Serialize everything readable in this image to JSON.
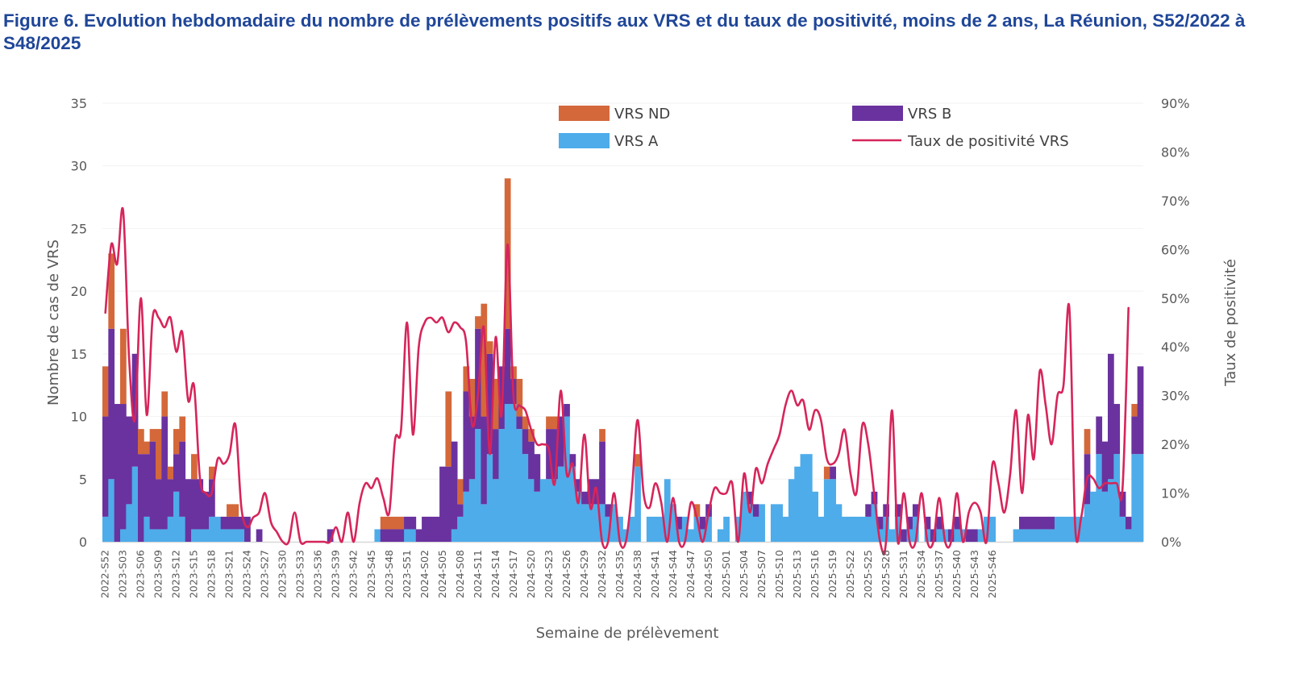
{
  "title": "Figure 6. Evolution hebdomadaire du nombre de prélèvements positifs aux VRS et du taux de positivité, moins de 2 ans, La Réunion, S52/2022 à S48/2025",
  "chart_data": {
    "type": "bar",
    "stacked": true,
    "xlabel": "Semaine de prélèvement",
    "ylabel": "Nombre de cas de VRS",
    "y2label": "Taux de positivité",
    "ylim": [
      0,
      35
    ],
    "y2lim": [
      0,
      0.9
    ],
    "yticks": [
      "0",
      "5",
      "10",
      "15",
      "20",
      "25",
      "30",
      "35"
    ],
    "y2ticks": [
      "0%",
      "10%",
      "20%",
      "30%",
      "40%",
      "50%",
      "60%",
      "70%",
      "80%",
      "90%"
    ],
    "legend_position": "top",
    "colors": {
      "VRS A": "#4eacea",
      "VRS B": "#6a329f",
      "VRS ND": "#d4683a",
      "Taux de positivité VRS": "#d6255a"
    },
    "legend": [
      {
        "name": "VRS ND",
        "kind": "bar"
      },
      {
        "name": "VRS B",
        "kind": "bar"
      },
      {
        "name": "VRS A",
        "kind": "bar"
      },
      {
        "name": "Taux de positivité VRS",
        "kind": "line"
      }
    ],
    "x_tick_labels": [
      "2022-S52",
      "2023-S03",
      "2023-S06",
      "2023-S09",
      "2023-S12",
      "2023-S15",
      "2023-S18",
      "2023-S21",
      "2023-S24",
      "2023-S27",
      "2023-S30",
      "2023-S33",
      "2023-S36",
      "2023-S39",
      "2023-S42",
      "2023-S45",
      "2023-S48",
      "2023-S51",
      "2024-S02",
      "2024-S05",
      "2024-S08",
      "2024-S11",
      "2024-S14",
      "2024-S17",
      "2024-S20",
      "2024-S23",
      "2024-S26",
      "2024-S29",
      "2024-S32",
      "2024-S35",
      "2024-S38",
      "2024-S41",
      "2024-S44",
      "2024-S47",
      "2024-S50",
      "2025-S01",
      "2025-S04",
      "2025-S07",
      "2025-S10",
      "2025-S13",
      "2025-S16",
      "2025-S19",
      "2025-S22",
      "2025-S25",
      "2025-S28",
      "2025-S31",
      "2025-S34",
      "2025-S37",
      "2025-S40",
      "2025-S43",
      "2025-S46"
    ],
    "series": [
      {
        "name": "VRS A",
        "values": [
          2,
          5,
          0,
          1,
          3,
          6,
          0,
          2,
          1,
          1,
          1,
          2,
          4,
          2,
          0,
          1,
          1,
          1,
          2,
          2,
          1,
          1,
          1,
          1,
          0,
          0,
          0,
          0,
          0,
          0,
          0,
          0,
          0,
          0,
          0,
          0,
          0,
          0,
          0,
          0,
          0,
          0,
          0,
          0,
          0,
          0,
          1,
          0,
          0,
          0,
          0,
          1,
          1,
          0,
          0,
          0,
          0,
          0,
          0,
          1,
          2,
          4,
          5,
          9,
          3,
          7,
          5,
          9,
          11,
          11,
          9,
          7,
          5,
          4,
          5,
          5,
          5,
          6,
          10,
          6,
          4,
          3,
          3,
          3,
          3,
          2,
          3,
          2,
          1,
          2,
          6,
          0,
          2,
          2,
          2,
          5,
          3,
          1,
          2,
          1,
          2,
          1,
          2,
          0,
          1,
          2,
          0,
          2,
          4,
          3,
          2,
          3,
          0,
          3,
          3,
          2,
          5,
          6,
          7,
          7,
          4,
          2,
          5,
          5,
          3,
          2,
          2,
          2,
          2,
          2,
          3,
          1,
          2,
          1,
          2,
          0,
          1,
          2,
          0,
          1,
          0,
          1,
          1,
          0,
          1,
          1,
          0,
          0,
          1,
          2,
          2,
          0,
          0,
          0,
          1,
          1,
          1,
          1,
          1,
          1,
          1,
          2,
          2,
          2,
          2,
          2,
          3,
          4,
          7,
          4,
          5,
          7,
          2,
          1,
          7,
          7
        ]
      },
      {
        "name": "VRS B",
        "values": [
          8,
          12,
          11,
          10,
          7,
          9,
          7,
          5,
          7,
          4,
          9,
          3,
          3,
          6,
          5,
          4,
          4,
          3,
          3,
          0,
          1,
          1,
          1,
          1,
          2,
          0,
          1,
          0,
          0,
          0,
          0,
          0,
          0,
          0,
          0,
          0,
          0,
          0,
          1,
          0,
          0,
          0,
          0,
          0,
          0,
          0,
          0,
          1,
          1,
          1,
          1,
          1,
          1,
          1,
          2,
          2,
          2,
          6,
          6,
          7,
          1,
          8,
          5,
          8,
          7,
          8,
          4,
          5,
          6,
          2,
          1,
          2,
          3,
          3,
          0,
          4,
          4,
          4,
          1,
          1,
          1,
          1,
          2,
          2,
          5,
          1,
          0,
          0,
          0,
          0,
          0,
          0,
          0,
          0,
          0,
          0,
          0,
          1,
          0,
          0,
          0,
          1,
          1,
          0,
          0,
          0,
          0,
          0,
          0,
          1,
          1,
          0,
          0,
          0,
          0,
          0,
          0,
          0,
          0,
          0,
          0,
          0,
          0,
          1,
          0,
          0,
          0,
          0,
          0,
          1,
          1,
          1,
          1,
          0,
          1,
          1,
          1,
          1,
          0,
          1,
          1,
          1,
          0,
          1,
          1,
          0,
          1,
          1,
          0,
          0,
          0,
          0,
          0,
          0,
          0,
          1,
          1,
          1,
          1,
          1,
          1,
          0,
          0,
          0,
          0,
          0,
          4,
          0,
          3,
          4,
          10,
          4,
          2,
          1,
          3,
          7
        ]
      },
      {
        "name": "VRS ND",
        "values": [
          4,
          6,
          0,
          6,
          0,
          0,
          2,
          1,
          1,
          4,
          2,
          1,
          2,
          2,
          0,
          2,
          0,
          0,
          1,
          0,
          0,
          1,
          1,
          0,
          0,
          0,
          0,
          0,
          0,
          0,
          0,
          0,
          0,
          0,
          0,
          0,
          0,
          0,
          0,
          0,
          0,
          0,
          0,
          0,
          0,
          0,
          0,
          1,
          1,
          1,
          1,
          0,
          0,
          0,
          0,
          0,
          0,
          0,
          6,
          0,
          2,
          2,
          3,
          1,
          9,
          1,
          4,
          0,
          12,
          1,
          3,
          1,
          1,
          0,
          0,
          1,
          1,
          0,
          0,
          0,
          0,
          0,
          0,
          0,
          1,
          0,
          0,
          0,
          0,
          0,
          1,
          0,
          0,
          0,
          0,
          0,
          0,
          0,
          0,
          0,
          1,
          0,
          0,
          0,
          0,
          0,
          0,
          0,
          0,
          0,
          0,
          0,
          0,
          0,
          0,
          0,
          0,
          0,
          0,
          0,
          0,
          0,
          1,
          0,
          0,
          0,
          0,
          0,
          0,
          0,
          0,
          0,
          0,
          0,
          0,
          0,
          0,
          0,
          0,
          0,
          0,
          0,
          0,
          0,
          0,
          0,
          0,
          0,
          0,
          0,
          0,
          0,
          0,
          0,
          0,
          0,
          0,
          0,
          0,
          0,
          0,
          0,
          0,
          0,
          0,
          0,
          2,
          0,
          0,
          0,
          0,
          0,
          0,
          0,
          1,
          0
        ]
      },
      {
        "name": "Taux de positivité VRS",
        "axis": "right",
        "values": [
          0.47,
          0.61,
          0.57,
          0.68,
          0.38,
          0.25,
          0.5,
          0.26,
          0.46,
          0.46,
          0.44,
          0.46,
          0.39,
          0.43,
          0.29,
          0.32,
          0.13,
          0.1,
          0.1,
          0.17,
          0.16,
          0.18,
          0.24,
          0.07,
          0.03,
          0.05,
          0.06,
          0.1,
          0.04,
          0.02,
          0.0,
          0.0,
          0.06,
          0.0,
          0.0,
          0.0,
          0.0,
          0.0,
          0.0,
          0.03,
          0.0,
          0.06,
          0.0,
          0.08,
          0.12,
          0.11,
          0.13,
          0.09,
          0.06,
          0.21,
          0.23,
          0.45,
          0.22,
          0.4,
          0.45,
          0.46,
          0.45,
          0.46,
          0.43,
          0.45,
          0.44,
          0.41,
          0.24,
          0.3,
          0.44,
          0.18,
          0.42,
          0.26,
          0.61,
          0.3,
          0.28,
          0.27,
          0.23,
          0.2,
          0.2,
          0.19,
          0.12,
          0.31,
          0.14,
          0.16,
          0.08,
          0.22,
          0.07,
          0.11,
          0.0,
          0.0,
          0.1,
          0.0,
          0.0,
          0.1,
          0.25,
          0.1,
          0.07,
          0.12,
          0.08,
          0.0,
          0.09,
          0.0,
          0.0,
          0.08,
          0.05,
          0.0,
          0.06,
          0.11,
          0.1,
          0.1,
          0.12,
          0.0,
          0.14,
          0.06,
          0.15,
          0.12,
          0.16,
          0.19,
          0.22,
          0.28,
          0.31,
          0.28,
          0.29,
          0.23,
          0.27,
          0.25,
          0.17,
          0.16,
          0.18,
          0.23,
          0.14,
          0.1,
          0.24,
          0.2,
          0.1,
          0.0,
          0.0,
          0.27,
          0.0,
          0.1,
          0.0,
          0.0,
          0.1,
          0.0,
          0.0,
          0.09,
          0.0,
          0.0,
          0.1,
          0.0,
          0.06,
          0.08,
          0.06,
          0.0,
          0.16,
          0.12,
          0.06,
          0.14,
          0.27,
          0.1,
          0.26,
          0.17,
          0.35,
          0.28,
          0.2,
          0.3,
          0.32,
          0.48,
          0.03,
          0.05,
          0.13,
          0.13,
          0.11,
          0.12,
          0.12,
          0.12,
          0.11,
          0.48
        ]
      }
    ]
  }
}
